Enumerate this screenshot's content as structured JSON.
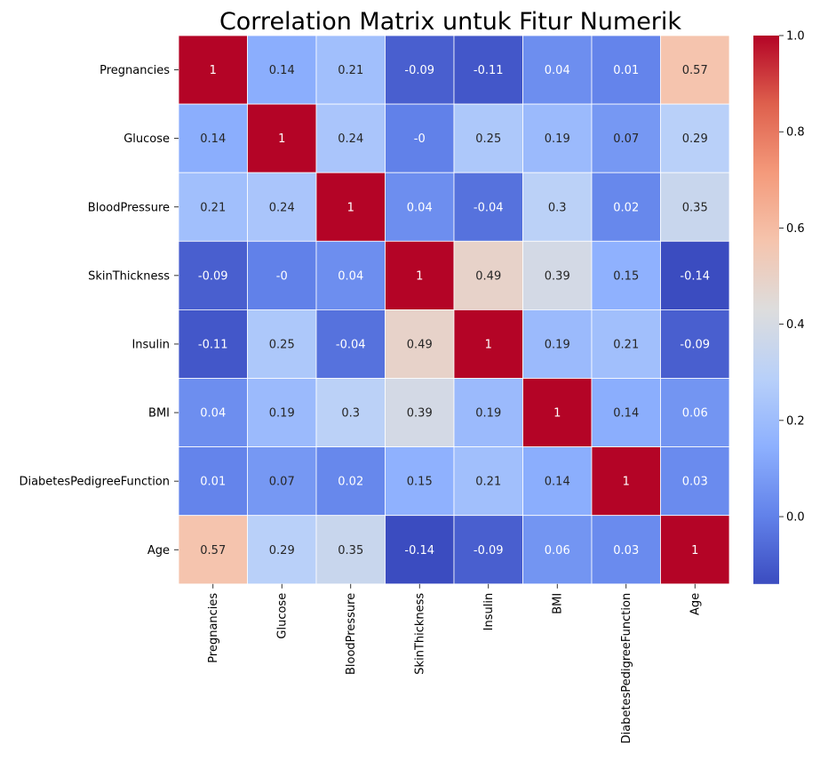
{
  "chart_data": {
    "type": "heatmap",
    "title": "Correlation Matrix untuk Fitur Numerik",
    "xlabel": "",
    "ylabel": "",
    "categories": [
      "Pregnancies",
      "Glucose",
      "BloodPressure",
      "SkinThickness",
      "Insulin",
      "BMI",
      "DiabetesPedigreeFunction",
      "Age"
    ],
    "values": [
      [
        1,
        0.14,
        0.21,
        -0.09,
        -0.11,
        0.04,
        0.01,
        0.57
      ],
      [
        0.14,
        1,
        0.24,
        -0.0,
        0.25,
        0.19,
        0.07,
        0.29
      ],
      [
        0.21,
        0.24,
        1,
        0.04,
        -0.04,
        0.3,
        0.02,
        0.35
      ],
      [
        -0.09,
        -0.0,
        0.04,
        1,
        0.49,
        0.39,
        0.15,
        -0.14
      ],
      [
        -0.11,
        0.25,
        -0.04,
        0.49,
        1,
        0.19,
        0.21,
        -0.09
      ],
      [
        0.04,
        0.19,
        0.3,
        0.39,
        0.19,
        1,
        0.14,
        0.06
      ],
      [
        0.01,
        0.07,
        0.02,
        0.15,
        0.21,
        0.14,
        1,
        0.03
      ],
      [
        0.57,
        0.29,
        0.35,
        -0.14,
        -0.09,
        0.06,
        0.03,
        1
      ]
    ],
    "value_labels": [
      [
        "1",
        "0.14",
        "0.21",
        "-0.09",
        "-0.11",
        "0.04",
        "0.01",
        "0.57"
      ],
      [
        "0.14",
        "1",
        "0.24",
        "-0",
        "0.25",
        "0.19",
        "0.07",
        "0.29"
      ],
      [
        "0.21",
        "0.24",
        "1",
        "0.04",
        "-0.04",
        "0.3",
        "0.02",
        "0.35"
      ],
      [
        "-0.09",
        "-0",
        "0.04",
        "1",
        "0.49",
        "0.39",
        "0.15",
        "-0.14"
      ],
      [
        "-0.11",
        "0.25",
        "-0.04",
        "0.49",
        "1",
        "0.19",
        "0.21",
        "-0.09"
      ],
      [
        "0.04",
        "0.19",
        "0.3",
        "0.39",
        "0.19",
        "1",
        "0.14",
        "0.06"
      ],
      [
        "0.01",
        "0.07",
        "0.02",
        "0.15",
        "0.21",
        "0.14",
        "1",
        "0.03"
      ],
      [
        "0.57",
        "0.29",
        "0.35",
        "-0.14",
        "-0.09",
        "0.06",
        "0.03",
        "1"
      ]
    ],
    "colormap": "coolwarm",
    "color_range": [
      -0.14,
      1.0
    ],
    "colorbar_ticks": [
      0.0,
      0.2,
      0.4,
      0.6,
      0.8,
      1.0
    ],
    "colorbar_tick_labels": [
      "0.0",
      "0.2",
      "0.4",
      "0.6",
      "0.8",
      "1.0"
    ],
    "grid": true,
    "legend": "colorbar-right"
  }
}
